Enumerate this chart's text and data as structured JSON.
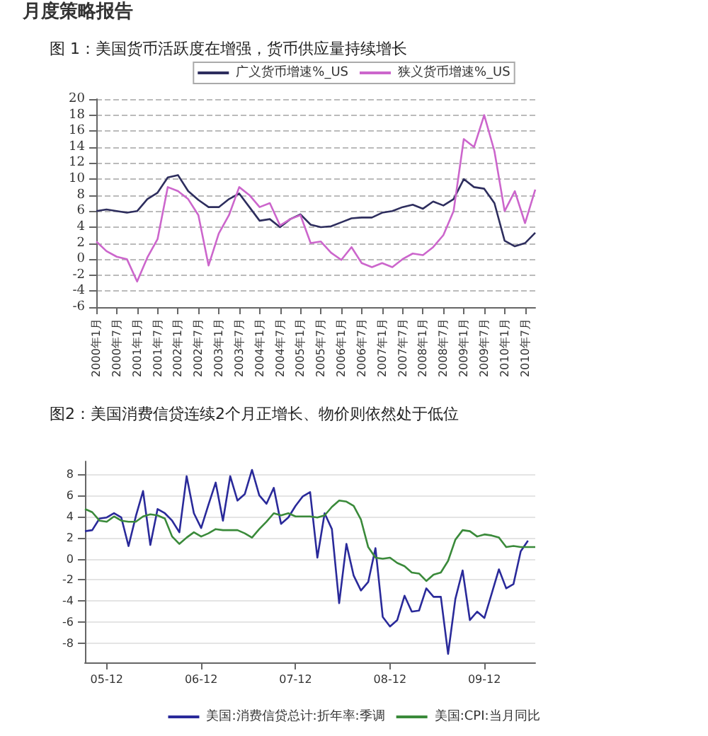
{
  "chart_data": [
    {
      "type": "line",
      "title": "图 1：美国货币活跃度在增强，货币供应量持续增长",
      "annotations": [
        "月度策略报告"
      ],
      "categories": [
        "2000年1月",
        null,
        "2000年7月",
        null,
        "2001年1月",
        null,
        "2001年7月",
        null,
        "2002年1月",
        null,
        "2002年7月",
        null,
        "2003年1月",
        null,
        "2003年7月",
        null,
        "2004年1月",
        null,
        "2004年7月",
        null,
        "2005年1月",
        null,
        "2005年7月",
        null,
        "2006年1月",
        null,
        "2006年7月",
        null,
        "2007年1月",
        null,
        "2007年7月",
        null,
        "2008年1月",
        null,
        "2008年7月",
        null,
        "2009年1月",
        null,
        "2009年7月",
        null,
        "2010年1月",
        null,
        "2010年7月",
        null
      ],
      "series": [
        {
          "name": "广义货币增速%_US",
          "color": "#2e2e5e",
          "values": [
            6,
            6.2,
            6.0,
            5.8,
            6.0,
            7.5,
            8.3,
            10.2,
            10.5,
            8.5,
            7.4,
            6.5,
            6.5,
            7.5,
            8.2,
            6.5,
            4.8,
            5.0,
            4.0,
            5.0,
            5.6,
            4.3,
            4.0,
            4.1,
            4.6,
            5.1,
            5.2,
            5.2,
            5.8,
            6.0,
            6.5,
            6.8,
            6.3,
            7.2,
            6.7,
            7.5,
            10.0,
            9.0,
            8.8,
            7.0,
            2.3,
            1.6,
            2.0,
            3.3
          ]
        },
        {
          "name": "狭义货币增速%_US",
          "color": "#cc66cc",
          "values": [
            2.2,
            1.0,
            0.3,
            0.0,
            -2.8,
            0.2,
            2.5,
            9.0,
            8.5,
            7.5,
            5.5,
            -0.8,
            3.2,
            5.5,
            9.0,
            8.0,
            6.5,
            7.0,
            4.2,
            5.0,
            5.5,
            2.0,
            2.2,
            0.8,
            -0.1,
            1.5,
            -0.5,
            -1.0,
            -0.5,
            -1.0,
            0.0,
            0.7,
            0.5,
            1.5,
            3.0,
            6.0,
            15.0,
            14.0,
            18.0,
            13.5,
            6.0,
            8.5,
            4.5,
            8.7
          ]
        }
      ],
      "ylim": [
        -6,
        20
      ],
      "yticks": [
        -6,
        -4,
        -2,
        0,
        2,
        4,
        6,
        8,
        10,
        12,
        14,
        16,
        18,
        20
      ],
      "grid": "y",
      "legend": "top",
      "marker": "none"
    },
    {
      "type": "line",
      "title": "图2：美国消费信贷连续2个月正增长、物价则依然处于低位",
      "categories": [
        null,
        null,
        null,
        "05-12",
        null,
        null,
        null,
        null,
        null,
        null,
        null,
        null,
        null,
        null,
        null,
        null,
        "06-12",
        null,
        null,
        null,
        null,
        null,
        null,
        null,
        null,
        null,
        null,
        null,
        null,
        "07-12",
        null,
        null,
        null,
        null,
        null,
        null,
        null,
        null,
        null,
        null,
        null,
        null,
        "08-12",
        null,
        null,
        null,
        null,
        null,
        null,
        null,
        null,
        null,
        null,
        null,
        null,
        "09-12",
        null,
        null,
        null,
        null,
        null,
        null,
        null
      ],
      "series": [
        {
          "name": "美国:消费信贷总计:折年率:季调",
          "color": "#2a2a9a",
          "values": [
            2.6,
            2.7,
            3.8,
            3.9,
            4.3,
            3.9,
            1.2,
            4.0,
            6.4,
            1.3,
            4.7,
            4.3,
            3.6,
            2.5,
            7.8,
            4.3,
            2.9,
            5.1,
            7.2,
            3.6,
            7.8,
            5.5,
            6.1,
            8.4,
            6.0,
            5.2,
            6.7,
            3.3,
            3.9,
            5.0,
            5.9,
            6.3,
            0.1,
            4.3,
            2.8,
            -4.2,
            1.4,
            -1.6,
            -3.0,
            -2.2,
            1.0,
            -5.5,
            -6.4,
            -5.8,
            -3.5,
            -5.0,
            -4.9,
            -2.8,
            -3.6,
            -3.6,
            -9.0,
            -3.8,
            -1.1,
            -5.8,
            -5.0,
            -5.6,
            -3.3,
            -1.0,
            -2.8,
            -2.4,
            0.7,
            1.7,
            null
          ]
        },
        {
          "name": "美国:CPI:当月同比",
          "color": "#3a8a3a",
          "values": [
            4.7,
            4.4,
            3.6,
            3.5,
            4.0,
            3.6,
            3.5,
            3.5,
            4.0,
            4.2,
            4.1,
            3.8,
            2.1,
            1.4,
            2.0,
            2.5,
            2.1,
            2.4,
            2.8,
            2.7,
            2.7,
            2.7,
            2.4,
            2.0,
            2.8,
            3.5,
            4.3,
            4.1,
            4.3,
            4.0,
            4.0,
            4.0,
            3.9,
            4.1,
            4.9,
            5.5,
            5.4,
            5.0,
            3.7,
            1.1,
            0.1,
            0.0,
            0.1,
            -0.4,
            -0.7,
            -1.3,
            -1.4,
            -2.1,
            -1.5,
            -1.3,
            -0.2,
            1.8,
            2.7,
            2.6,
            2.1,
            2.3,
            2.2,
            2.0,
            1.1,
            1.2,
            1.1,
            1.1,
            1.1
          ]
        }
      ],
      "ylim": [
        -9.8,
        9.2
      ],
      "yticks": [
        -8,
        -6,
        -4,
        -2,
        0,
        2,
        4,
        6,
        8
      ],
      "grid": "y",
      "legend": "bottom",
      "marker": "none"
    }
  ]
}
